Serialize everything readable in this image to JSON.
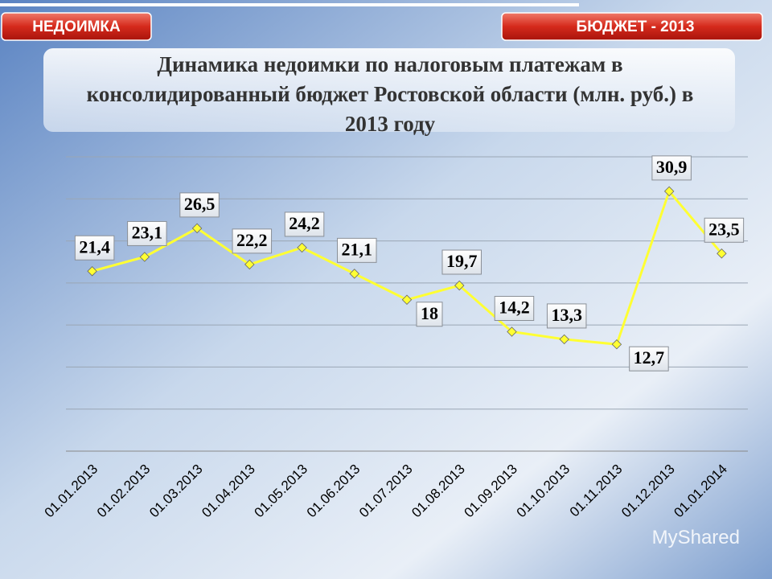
{
  "header": {
    "left_tab": "НЕДОИМКА",
    "right_tab": "БЮДЖЕТ - 2013"
  },
  "watermark": "MyShared",
  "chart_data": {
    "type": "line",
    "title": "Динамика недоимки по налоговым платежам в консолидированный бюджет Ростовской области (млн. руб.) в 2013 году",
    "categories": [
      "01.01.2013",
      "01.02.2013",
      "01.03.2013",
      "01.04.2013",
      "01.05.2013",
      "01.06.2013",
      "01.07.2013",
      "01.08.2013",
      "01.09.2013",
      "01.10.2013",
      "01.11.2013",
      "01.12.2013",
      "01.01.2014"
    ],
    "values": [
      21.4,
      23.1,
      26.5,
      22.2,
      24.2,
      21.1,
      18,
      19.7,
      14.2,
      13.3,
      12.7,
      30.9,
      23.5
    ],
    "value_labels": [
      "21,4",
      "23,1",
      "26,5",
      "22,2",
      "24,2",
      "21,1",
      "18",
      "19,7",
      "14,2",
      "13,3",
      "12,7",
      "30,9",
      "23,5"
    ],
    "color": "#ffff33",
    "ylim": [
      0,
      35
    ],
    "yticks": [
      0,
      5,
      10,
      15,
      20,
      25,
      30,
      35
    ],
    "grid": true
  }
}
